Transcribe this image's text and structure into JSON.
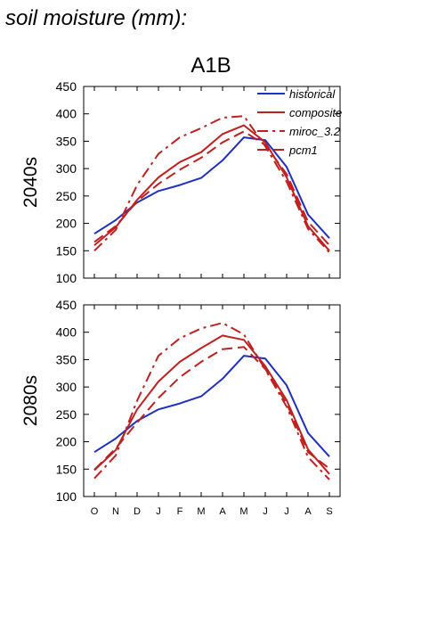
{
  "figure": {
    "title": "soil moisture (mm):",
    "scenario": "A1B"
  },
  "chart_data": [
    {
      "type": "line",
      "row_label": "2040s",
      "categories": [
        "O",
        "N",
        "D",
        "J",
        "F",
        "M",
        "A",
        "M",
        "J",
        "J",
        "A",
        "S"
      ],
      "ylim": [
        100,
        450
      ],
      "yticks": [
        100,
        150,
        200,
        250,
        300,
        350,
        400,
        450
      ],
      "legend": "top-right",
      "series": [
        {
          "name": "historical",
          "color": "#1f2fbf",
          "dash": "solid",
          "values": [
            181,
            206,
            238,
            259,
            270,
            283,
            315,
            357,
            352,
            303,
            216,
            173
          ]
        },
        {
          "name": "composite",
          "color": "#c02020",
          "dash": "solid",
          "values": [
            160,
            193,
            243,
            284,
            312,
            330,
            363,
            379,
            348,
            284,
            195,
            150
          ]
        },
        {
          "name": "miroc_3.2",
          "color": "#c02020",
          "dash": "dashdot",
          "values": [
            150,
            188,
            270,
            327,
            357,
            374,
            393,
            396,
            341,
            276,
            190,
            147
          ]
        },
        {
          "name": "pcm1",
          "color": "#c02020",
          "dash": "dash",
          "values": [
            166,
            195,
            240,
            272,
            298,
            320,
            348,
            368,
            343,
            290,
            203,
            160
          ]
        }
      ]
    },
    {
      "type": "line",
      "row_label": "2080s",
      "categories": [
        "O",
        "N",
        "D",
        "J",
        "F",
        "M",
        "A",
        "M",
        "J",
        "J",
        "A",
        "S"
      ],
      "ylim": [
        100,
        450
      ],
      "yticks": [
        100,
        150,
        200,
        250,
        300,
        350,
        400,
        450
      ],
      "series": [
        {
          "name": "historical",
          "color": "#1f2fbf",
          "dash": "solid",
          "values": [
            181,
            206,
            238,
            259,
            270,
            283,
            315,
            357,
            352,
            303,
            216,
            173
          ]
        },
        {
          "name": "composite",
          "color": "#c02020",
          "dash": "solid",
          "values": [
            148,
            185,
            259,
            310,
            346,
            371,
            394,
            386,
            338,
            276,
            186,
            141
          ]
        },
        {
          "name": "miroc_3.2",
          "color": "#c02020",
          "dash": "dashdot",
          "values": [
            133,
            175,
            275,
            357,
            389,
            407,
            417,
            396,
            332,
            264,
            172,
            131
          ]
        },
        {
          "name": "pcm1",
          "color": "#c02020",
          "dash": "dash",
          "values": [
            149,
            188,
            235,
            280,
            318,
            346,
            369,
            373,
            333,
            270,
            181,
            151
          ]
        }
      ]
    }
  ]
}
